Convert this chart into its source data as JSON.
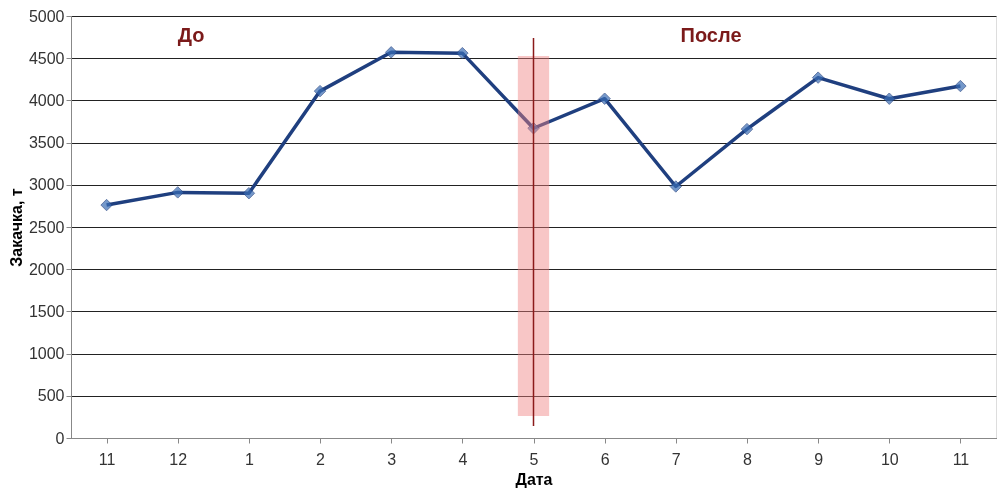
{
  "chart_data": {
    "type": "line",
    "xlabel": "Дата",
    "ylabel": "Закачка, т",
    "categories": [
      "11",
      "12",
      "1",
      "2",
      "3",
      "4",
      "5",
      "6",
      "7",
      "8",
      "9",
      "10",
      "11"
    ],
    "series": [
      {
        "color": "#1f3f7f",
        "values": [
          2760,
          2910,
          2900,
          4110,
          4570,
          4560,
          3670,
          4020,
          2980,
          3660,
          4270,
          4020,
          4170
        ]
      }
    ],
    "ylim": [
      0,
      5000
    ],
    "yticks": [
      0,
      500,
      1000,
      1500,
      2000,
      2500,
      3000,
      3500,
      4000,
      4500,
      5000
    ],
    "grid": "y",
    "marker": "diamond",
    "line_style": "solid",
    "bands": [
      {
        "axis": "x",
        "from": "5",
        "to": "5",
        "color": "#f08080"
      }
    ],
    "ref_lines": [
      {
        "axis": "x",
        "value": "5",
        "color": "#8b1a1a"
      }
    ],
    "annotations": [
      "До",
      "После"
    ]
  }
}
